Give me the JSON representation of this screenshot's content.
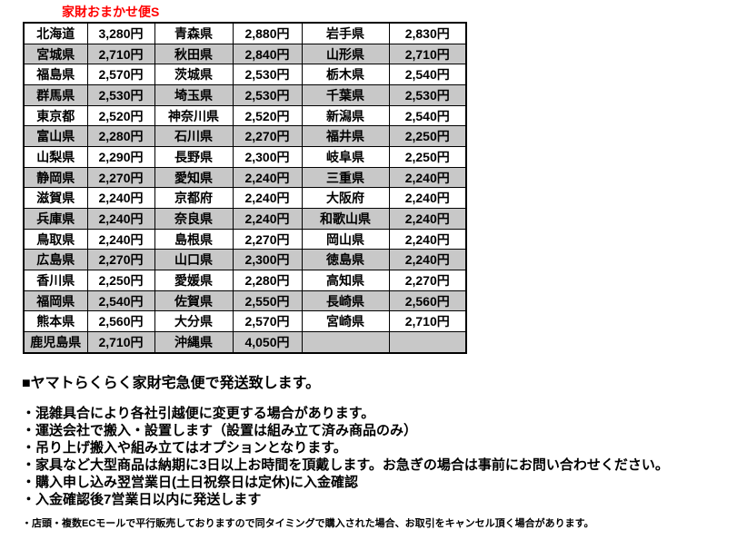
{
  "title": "家財おまかせ便S",
  "colors": {
    "title": "#FF0000",
    "row_alt": "#C8C8C8",
    "border": "#000000"
  },
  "table": {
    "rows": [
      [
        {
          "pref": "北海道",
          "price": "3,280円"
        },
        {
          "pref": "青森県",
          "price": "2,880円"
        },
        {
          "pref": "岩手県",
          "price": "2,830円"
        }
      ],
      [
        {
          "pref": "宮城県",
          "price": "2,710円"
        },
        {
          "pref": "秋田県",
          "price": "2,840円"
        },
        {
          "pref": "山形県",
          "price": "2,710円"
        }
      ],
      [
        {
          "pref": "福島県",
          "price": "2,570円"
        },
        {
          "pref": "茨城県",
          "price": "2,530円"
        },
        {
          "pref": "栃木県",
          "price": "2,540円"
        }
      ],
      [
        {
          "pref": "群馬県",
          "price": "2,530円"
        },
        {
          "pref": "埼玉県",
          "price": "2,530円"
        },
        {
          "pref": "千葉県",
          "price": "2,530円"
        }
      ],
      [
        {
          "pref": "東京都",
          "price": "2,520円"
        },
        {
          "pref": "神奈川県",
          "price": "2,520円"
        },
        {
          "pref": "新潟県",
          "price": "2,540円"
        }
      ],
      [
        {
          "pref": "富山県",
          "price": "2,280円"
        },
        {
          "pref": "石川県",
          "price": "2,270円"
        },
        {
          "pref": "福井県",
          "price": "2,250円"
        }
      ],
      [
        {
          "pref": "山梨県",
          "price": "2,290円"
        },
        {
          "pref": "長野県",
          "price": "2,300円"
        },
        {
          "pref": "岐阜県",
          "price": "2,250円"
        }
      ],
      [
        {
          "pref": "静岡県",
          "price": "2,270円"
        },
        {
          "pref": "愛知県",
          "price": "2,240円"
        },
        {
          "pref": "三重県",
          "price": "2,240円"
        }
      ],
      [
        {
          "pref": "滋賀県",
          "price": "2,240円"
        },
        {
          "pref": "京都府",
          "price": "2,240円"
        },
        {
          "pref": "大阪府",
          "price": "2,240円"
        }
      ],
      [
        {
          "pref": "兵庫県",
          "price": "2,240円"
        },
        {
          "pref": "奈良県",
          "price": "2,240円"
        },
        {
          "pref": "和歌山県",
          "price": "2,240円"
        }
      ],
      [
        {
          "pref": "鳥取県",
          "price": "2,240円"
        },
        {
          "pref": "島根県",
          "price": "2,270円"
        },
        {
          "pref": "岡山県",
          "price": "2,240円"
        }
      ],
      [
        {
          "pref": "広島県",
          "price": "2,270円"
        },
        {
          "pref": "山口県",
          "price": "2,300円"
        },
        {
          "pref": "徳島県",
          "price": "2,240円"
        }
      ],
      [
        {
          "pref": "香川県",
          "price": "2,250円"
        },
        {
          "pref": "愛媛県",
          "price": "2,280円"
        },
        {
          "pref": "高知県",
          "price": "2,270円"
        }
      ],
      [
        {
          "pref": "福岡県",
          "price": "2,540円"
        },
        {
          "pref": "佐賀県",
          "price": "2,550円"
        },
        {
          "pref": "長崎県",
          "price": "2,560円"
        }
      ],
      [
        {
          "pref": "熊本県",
          "price": "2,560円"
        },
        {
          "pref": "大分県",
          "price": "2,570円"
        },
        {
          "pref": "宮崎県",
          "price": "2,710円"
        }
      ],
      [
        {
          "pref": "鹿児島県",
          "price": "2,710円"
        },
        {
          "pref": "沖縄県",
          "price": "4,050円"
        },
        {
          "pref": "",
          "price": ""
        }
      ]
    ]
  },
  "notes": {
    "heading": "■ヤマトらくらく家財宅急便で発送致します。",
    "bullets": [
      "・混雑具合により各社引越便に変更する場合があります。",
      "・運送会社で搬入・設置します（設置は組み立て済み商品のみ）",
      "・吊り上げ搬入や組み立てはオプションとなります。",
      "・家具など大型商品は納期に3日以上お時間を頂戴します。お急ぎの場合は事前にお問い合わせください。",
      "・購入申し込み翌営業日(土日祝祭日は定休)に入金確認",
      "・入金確認後7営業日以内に発送します"
    ],
    "footnote": "・店頭・複数ECモールで平行販売しておりますので同タイミングで購入された場合、お取引をキャンセル頂く場合があります。"
  }
}
